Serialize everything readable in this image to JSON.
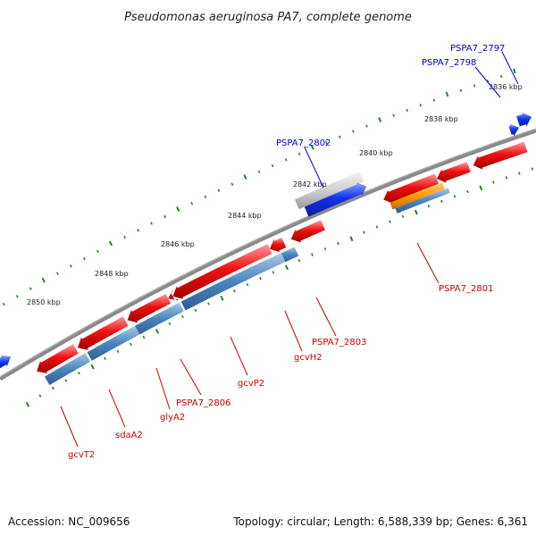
{
  "title": "Pseudomonas aeruginosa PA7, complete genome",
  "footer": {
    "accession": "Accession: NC_009656",
    "summary": "Topology: circular; Length: 6,588,339 bp; Genes: 6,361"
  },
  "colors": {
    "backbone": "#8a8a8a",
    "forward_gene": "#ee1111",
    "reverse_gene": "#1133ee",
    "cds": "#4a86be",
    "rna": "#ff9900",
    "pseudo": "#cccccc",
    "tick": "#1a8a1a",
    "label_forward": "#0000cc",
    "label_reverse": "#cc0000"
  },
  "scale_ticks": [
    "2836 kbp",
    "2838 kbp",
    "2840 kbp",
    "2842 kbp",
    "2844 kbp",
    "2846 kbp",
    "2848 kbp",
    "2850 kbp"
  ],
  "gene_labels_forward": [
    "PSPA7_2797",
    "PSPA7_2798",
    "PSPA7_2802"
  ],
  "gene_labels_reverse": [
    "PSPA7_2801",
    "PSPA7_2803",
    "gcvH2",
    "gcvP2",
    "PSPA7_2806",
    "glyA2",
    "sdaA2",
    "gcvT2"
  ]
}
